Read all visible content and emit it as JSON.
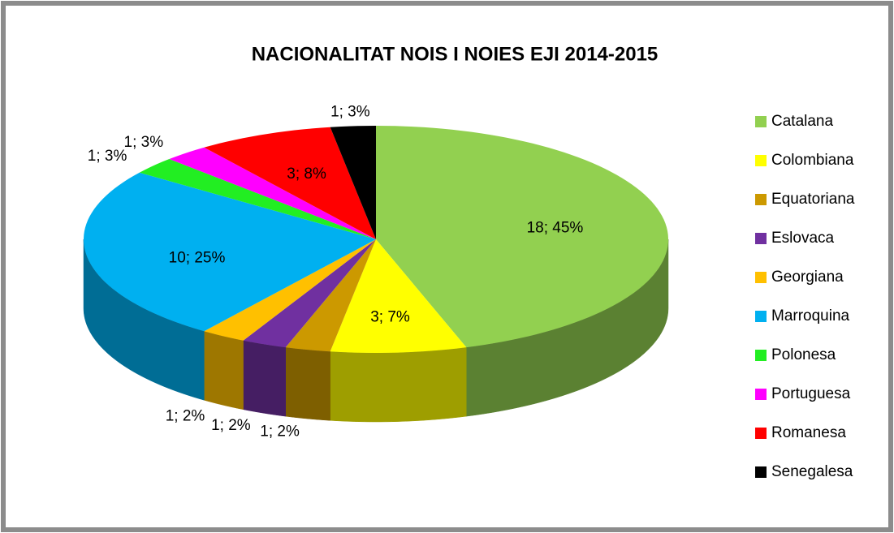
{
  "chart_data": {
    "type": "pie",
    "title": "NACIONALITAT NOIS I NOIES EJI 2014-2015",
    "categories": [
      "Catalana",
      "Colombiana",
      "Equatoriana",
      "Eslovaca",
      "Georgiana",
      "Marroquina",
      "Polonesa",
      "Portuguesa",
      "Romanesa",
      "Senegalesa"
    ],
    "values": [
      18,
      3,
      1,
      1,
      1,
      10,
      1,
      1,
      3,
      1
    ],
    "value_labels": [
      "18; 45%",
      "3; 7%",
      "1; 2%",
      "1; 2%",
      "1; 2%",
      "10; 25%",
      "1; 3%",
      "1; 3%",
      "3; 8%",
      "1; 3%"
    ],
    "colors": [
      "#92d050",
      "#ffff00",
      "#cc9900",
      "#7030a0",
      "#ffc000",
      "#00b0f0",
      "#22ee22",
      "#ff00ff",
      "#ff0000",
      "#000000"
    ],
    "legend": "right"
  }
}
